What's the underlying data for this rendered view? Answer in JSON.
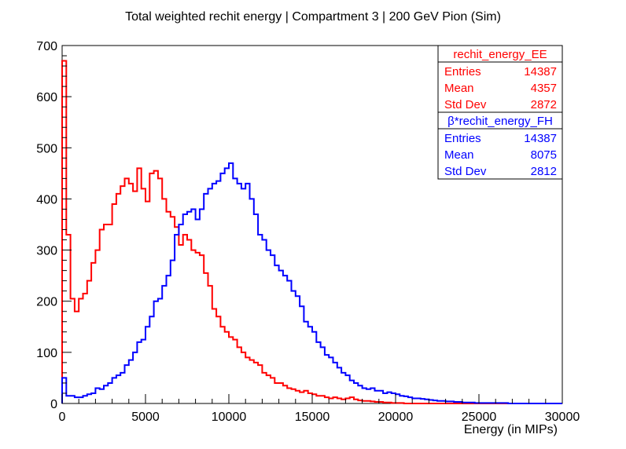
{
  "chart_data": {
    "type": "histogram",
    "title": "Total weighted rechit energy | Compartment 3 | 200 GeV Pion (Sim)",
    "xlabel": "Energy (in MIPs)",
    "ylabel": "",
    "xlim": [
      0,
      30000
    ],
    "ylim": [
      0,
      700
    ],
    "x_ticks": [
      "0",
      "5000",
      "10000",
      "15000",
      "20000",
      "25000",
      "30000"
    ],
    "y_ticks": [
      "0",
      "100",
      "200",
      "300",
      "400",
      "500",
      "600",
      "700"
    ],
    "grid": false,
    "bin_width": 250,
    "series": [
      {
        "name": "rechit_energy_EE",
        "color": "#ff0000",
        "stats": {
          "entries_label": "Entries",
          "entries": "14387",
          "mean_label": "Mean",
          "mean": "4357",
          "std_label": "Std Dev",
          "std": "2872"
        },
        "values": [
          670,
          330,
          205,
          180,
          205,
          215,
          240,
          275,
          300,
          340,
          350,
          350,
          390,
          410,
          425,
          440,
          430,
          415,
          460,
          420,
          395,
          450,
          455,
          440,
          400,
          375,
          365,
          345,
          310,
          330,
          320,
          300,
          295,
          290,
          255,
          230,
          185,
          170,
          150,
          140,
          130,
          125,
          110,
          100,
          90,
          85,
          80,
          75,
          60,
          55,
          50,
          40,
          40,
          35,
          30,
          28,
          25,
          22,
          25,
          20,
          18,
          15,
          15,
          12,
          10,
          12,
          10,
          8,
          10,
          12,
          8,
          6,
          5,
          5,
          4,
          3,
          3,
          2,
          2,
          1,
          1,
          1,
          0,
          0,
          0,
          0,
          0,
          0,
          0,
          0,
          0,
          0,
          0,
          0,
          0,
          0,
          0,
          0,
          0,
          0,
          0,
          0,
          0,
          0,
          0,
          0,
          0,
          0,
          0,
          0,
          0,
          0,
          0,
          0,
          0,
          0,
          0,
          0,
          0,
          0
        ]
      },
      {
        "name": "β*rechit_energy_FH",
        "color": "#0000ff",
        "stats": {
          "entries_label": "Entries",
          "entries": "14387",
          "mean_label": "Mean",
          "mean": "8075",
          "std_label": "Std Dev",
          "std": "2812"
        },
        "values": [
          50,
          15,
          15,
          12,
          12,
          15,
          18,
          20,
          30,
          28,
          35,
          40,
          50,
          55,
          60,
          75,
          85,
          100,
          120,
          125,
          150,
          170,
          200,
          205,
          230,
          250,
          280,
          330,
          350,
          370,
          375,
          380,
          360,
          380,
          410,
          420,
          430,
          435,
          450,
          460,
          470,
          440,
          430,
          420,
          430,
          400,
          370,
          330,
          320,
          300,
          290,
          270,
          260,
          250,
          240,
          220,
          210,
          190,
          160,
          150,
          140,
          120,
          110,
          95,
          90,
          80,
          70,
          60,
          55,
          45,
          40,
          35,
          30,
          28,
          30,
          25,
          25,
          20,
          22,
          20,
          18,
          15,
          14,
          12,
          10,
          10,
          9,
          8,
          7,
          6,
          5,
          5,
          4,
          4,
          3,
          3,
          2,
          2,
          2,
          1,
          1,
          1,
          1,
          1,
          1,
          1,
          1,
          0,
          0,
          0,
          0,
          0,
          0,
          0,
          0,
          0,
          0,
          0,
          0,
          0
        ]
      }
    ],
    "legend_position": "top-right"
  }
}
